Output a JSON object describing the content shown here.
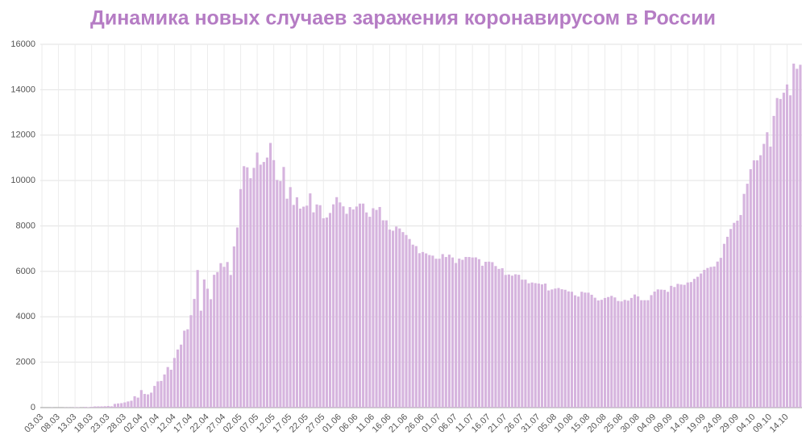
{
  "chart_data": {
    "type": "bar",
    "title": "Динамика новых случаев заражения коронавирусом в России",
    "categories": [
      "03.03",
      null,
      null,
      null,
      null,
      "08.03",
      null,
      null,
      null,
      null,
      "13.03",
      null,
      null,
      null,
      null,
      "18.03",
      null,
      null,
      null,
      null,
      "23.03",
      null,
      null,
      null,
      null,
      "28.03",
      null,
      null,
      null,
      null,
      "02.04",
      null,
      null,
      null,
      null,
      "07.04",
      null,
      null,
      null,
      null,
      "12.04",
      null,
      null,
      null,
      null,
      "17.04",
      null,
      null,
      null,
      null,
      "22.04",
      null,
      null,
      null,
      null,
      "27.04",
      null,
      null,
      null,
      null,
      "02.05",
      null,
      null,
      null,
      null,
      "07.05",
      null,
      null,
      null,
      null,
      "12.05",
      null,
      null,
      null,
      null,
      "17.05",
      null,
      null,
      null,
      null,
      "22.05",
      null,
      null,
      null,
      null,
      "27.05",
      null,
      null,
      null,
      null,
      "01.06",
      null,
      null,
      null,
      null,
      "06.06",
      null,
      null,
      null,
      null,
      "11.06",
      null,
      null,
      null,
      null,
      "16.06",
      null,
      null,
      null,
      null,
      "21.06",
      null,
      null,
      null,
      null,
      "26.06",
      null,
      null,
      null,
      null,
      "01.07",
      null,
      null,
      null,
      null,
      "06.07",
      null,
      null,
      null,
      null,
      "11.07",
      null,
      null,
      null,
      null,
      "16.07",
      null,
      null,
      null,
      null,
      "21.07",
      null,
      null,
      null,
      null,
      "26.07",
      null,
      null,
      null,
      null,
      "31.07",
      null,
      null,
      null,
      null,
      "05.08",
      null,
      null,
      null,
      null,
      "10.08",
      null,
      null,
      null,
      null,
      "15.08",
      null,
      null,
      null,
      null,
      "20.08",
      null,
      null,
      null,
      null,
      "25.08",
      null,
      null,
      null,
      null,
      "30.08",
      null,
      null,
      null,
      null,
      "04.09",
      null,
      null,
      null,
      null,
      "09.09",
      null,
      null,
      null,
      null,
      "14.09",
      null,
      null,
      null,
      null,
      "19.09",
      null,
      null,
      null,
      null,
      "24.09",
      null,
      null,
      null,
      null,
      "29.09",
      null,
      null,
      null,
      null,
      "04.10",
      null,
      null,
      null,
      null,
      "09.10",
      null,
      null,
      null,
      null,
      "14.10",
      null,
      null,
      null,
      null
    ],
    "values": [
      0,
      0,
      1,
      6,
      0,
      3,
      0,
      7,
      8,
      6,
      17,
      14,
      4,
      30,
      21,
      33,
      52,
      54,
      53,
      61,
      71,
      57,
      163,
      182,
      196,
      228,
      270,
      302,
      501,
      440,
      771,
      601,
      582,
      658,
      954,
      1154,
      1175,
      1459,
      1786,
      1667,
      2186,
      2558,
      2774,
      3388,
      3448,
      4070,
      4785,
      6060,
      4268,
      5642,
      5236,
      4774,
      5849,
      5966,
      6361,
      6198,
      6411,
      5841,
      7099,
      7933,
      9623,
      10633,
      10581,
      10102,
      10559,
      11231,
      10699,
      10817,
      11012,
      11656,
      10899,
      10028,
      9974,
      10598,
      9200,
      9709,
      8926,
      9263,
      8764,
      8849,
      8894,
      9434,
      8599,
      8946,
      8915,
      8338,
      8371,
      8572,
      8952,
      9268,
      9035,
      8863,
      8536,
      8831,
      8726,
      8855,
      8984,
      8985,
      8595,
      8404,
      8779,
      8706,
      8835,
      8248,
      8246,
      7843,
      7790,
      7972,
      7889,
      7728,
      7600,
      7425,
      7176,
      7113,
      6800,
      6852,
      6791,
      6719,
      6693,
      6556,
      6556,
      6760,
      6632,
      6736,
      6611,
      6368,
      6562,
      6509,
      6635,
      6632,
      6611,
      6615,
      6537,
      6248,
      6422,
      6428,
      6406,
      6234,
      6109,
      6139,
      5842,
      5862,
      5811,
      5871,
      5848,
      5635,
      5635,
      5475,
      5509,
      5482,
      5462,
      5427,
      5462,
      5159,
      5204,
      5241,
      5267,
      5212,
      5189,
      5118,
      5102,
      4945,
      4890,
      5102,
      5065,
      5061,
      4969,
      4839,
      4718,
      4748,
      4828,
      4870,
      4921,
      4852,
      4696,
      4676,
      4744,
      4711,
      4829,
      4980,
      4897,
      4729,
      4729,
      4729,
      4952,
      5110,
      5205,
      5195,
      5185,
      5099,
      5363,
      5310,
      5449,
      5421,
      5406,
      5509,
      5529,
      5670,
      5762,
      5905,
      6065,
      6148,
      6196,
      6215,
      6431,
      6595,
      7212,
      7523,
      7867,
      8135,
      8232,
      8481,
      9412,
      9859,
      10499,
      10888,
      10888,
      11115,
      11615,
      12126,
      11493,
      12846,
      13634,
      13592,
      13868,
      14231,
      13754,
      15150,
      14922,
      15099
    ],
    "color": "#d6b4de",
    "ylim": [
      0,
      16000
    ],
    "yticks": [
      0,
      2000,
      4000,
      6000,
      8000,
      10000,
      12000,
      14000,
      16000
    ],
    "grid": true
  }
}
